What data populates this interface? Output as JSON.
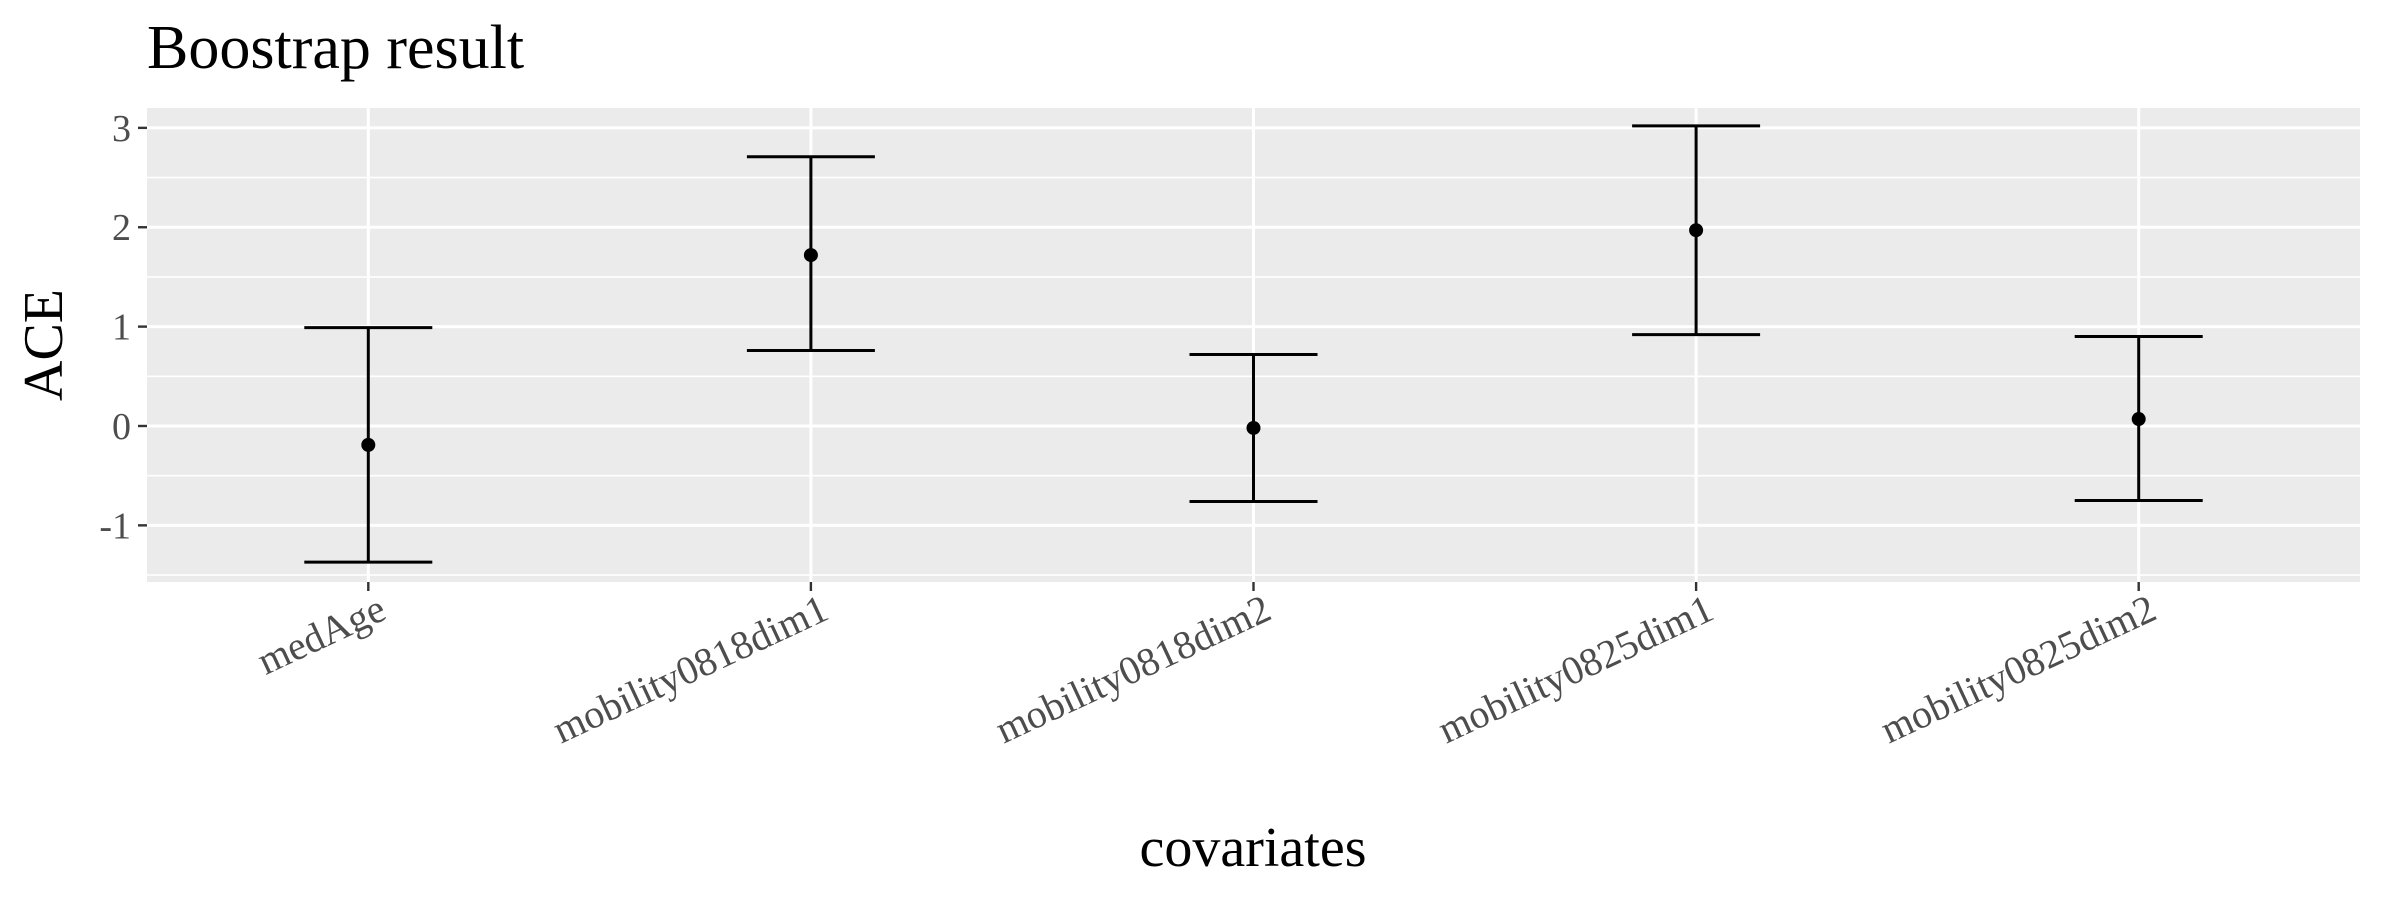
{
  "chart_data": {
    "type": "errorbar",
    "title": "Boostrap result",
    "xlabel": "covariates",
    "ylabel": "ACE",
    "categories": [
      "medAge",
      "mobility0818dim1",
      "mobility0818dim2",
      "mobility0825dim1",
      "mobility0825dim2"
    ],
    "estimate": [
      -0.19,
      1.72,
      -0.02,
      1.97,
      0.07
    ],
    "lower": [
      -1.37,
      0.76,
      -0.76,
      0.92,
      -0.75
    ],
    "upper": [
      0.99,
      2.71,
      0.72,
      3.02,
      0.9
    ],
    "ylim": [
      -1.57,
      3.2
    ],
    "yticks": [
      -1,
      0,
      1,
      2,
      3
    ],
    "ytick_labels": [
      "-1",
      "0",
      "1",
      "2",
      "3"
    ],
    "grid": true,
    "legend": "none",
    "colors": {
      "panel": "#ebebeb",
      "grid": "#ffffff",
      "marks": "#000000",
      "tick_text": "#4d4d4d"
    }
  }
}
